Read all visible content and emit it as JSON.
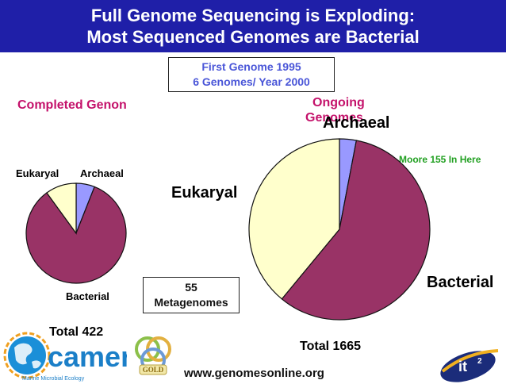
{
  "header": {
    "line1": "Full Genome Sequencing is Exploding:",
    "line2": "Most Sequenced Genomes are Bacterial"
  },
  "infobox": {
    "line1": "First Genome 1995",
    "line2": "6 Genomes/ Year 2000"
  },
  "metagenomes": {
    "count": "55",
    "label": "Metagenomes"
  },
  "note": "Moore 155 In Here",
  "url": "www.genomesonline.org",
  "logos": {
    "camera_name": "camera",
    "camera_tagline": "Marine Microbial Ecology",
    "gold": "GOLD",
    "it2": "it"
  },
  "colors": {
    "bacterial": "#993366",
    "eukaryal": "#ffffcc",
    "archaeal": "#9999ff",
    "header": "#1f1fa8",
    "title_magenta": "#c4126b"
  },
  "chart_data": [
    {
      "type": "pie",
      "title": "Completed Genon",
      "categories": [
        "Archaeal",
        "Bacterial",
        "Eukaryal"
      ],
      "values": [
        6,
        84,
        10
      ],
      "total_label": "Total 422",
      "labels": {
        "eukaryal": "Eukaryal",
        "archaeal": "Archaeal",
        "bacterial": "Bacterial"
      }
    },
    {
      "type": "pie",
      "title": "Ongoing Genomes",
      "title_line1": "Ongoing",
      "title_line2": "Genomes",
      "categories": [
        "Archaeal",
        "Bacterial",
        "Eukaryal"
      ],
      "values": [
        3,
        58,
        39
      ],
      "total_label": "Total 1665",
      "labels": {
        "eukaryal": "Eukaryal",
        "archaeal": "Archaeal",
        "bacterial": "Bacterial"
      }
    }
  ]
}
